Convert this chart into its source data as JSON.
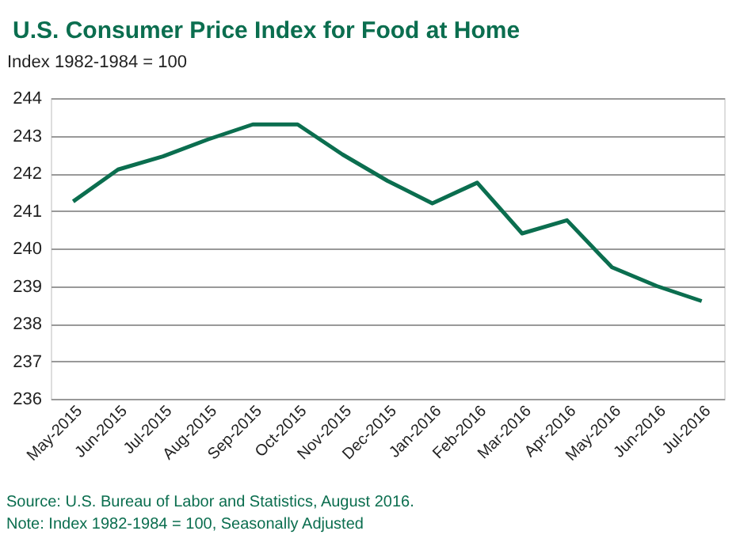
{
  "chart_data": {
    "type": "line",
    "title": "U.S. Consumer Price Index for Food at Home",
    "ylabel": "Index 1982-1984 = 100",
    "categories": [
      "May-2015",
      "Jun-2015",
      "Jul-2015",
      "Aug-2015",
      "Sep-2015",
      "Oct-2015",
      "Nov-2015",
      "Dec-2015",
      "Jan-2016",
      "Feb-2016",
      "Mar-2016",
      "Apr-2016",
      "May-2016",
      "Jun-2016",
      "Jul-2016"
    ],
    "series": [
      {
        "color": "#0b6e4f",
        "values": [
          241.25,
          242.1,
          242.45,
          242.9,
          243.3,
          243.3,
          242.5,
          241.8,
          241.2,
          241.75,
          240.4,
          240.75,
          239.5,
          239.0,
          238.6
        ]
      }
    ],
    "ylim": [
      236,
      244
    ],
    "yticks": [
      236,
      237,
      238,
      239,
      240,
      241,
      242,
      243,
      244
    ],
    "grid": "y",
    "legend": false,
    "marker": "none",
    "line_style": "solid",
    "annotations": [
      "Source: U.S. Bureau of Labor and Statistics, August 2016.",
      "Note: Index 1982-1984 = 100, Seasonally Adjusted"
    ]
  }
}
